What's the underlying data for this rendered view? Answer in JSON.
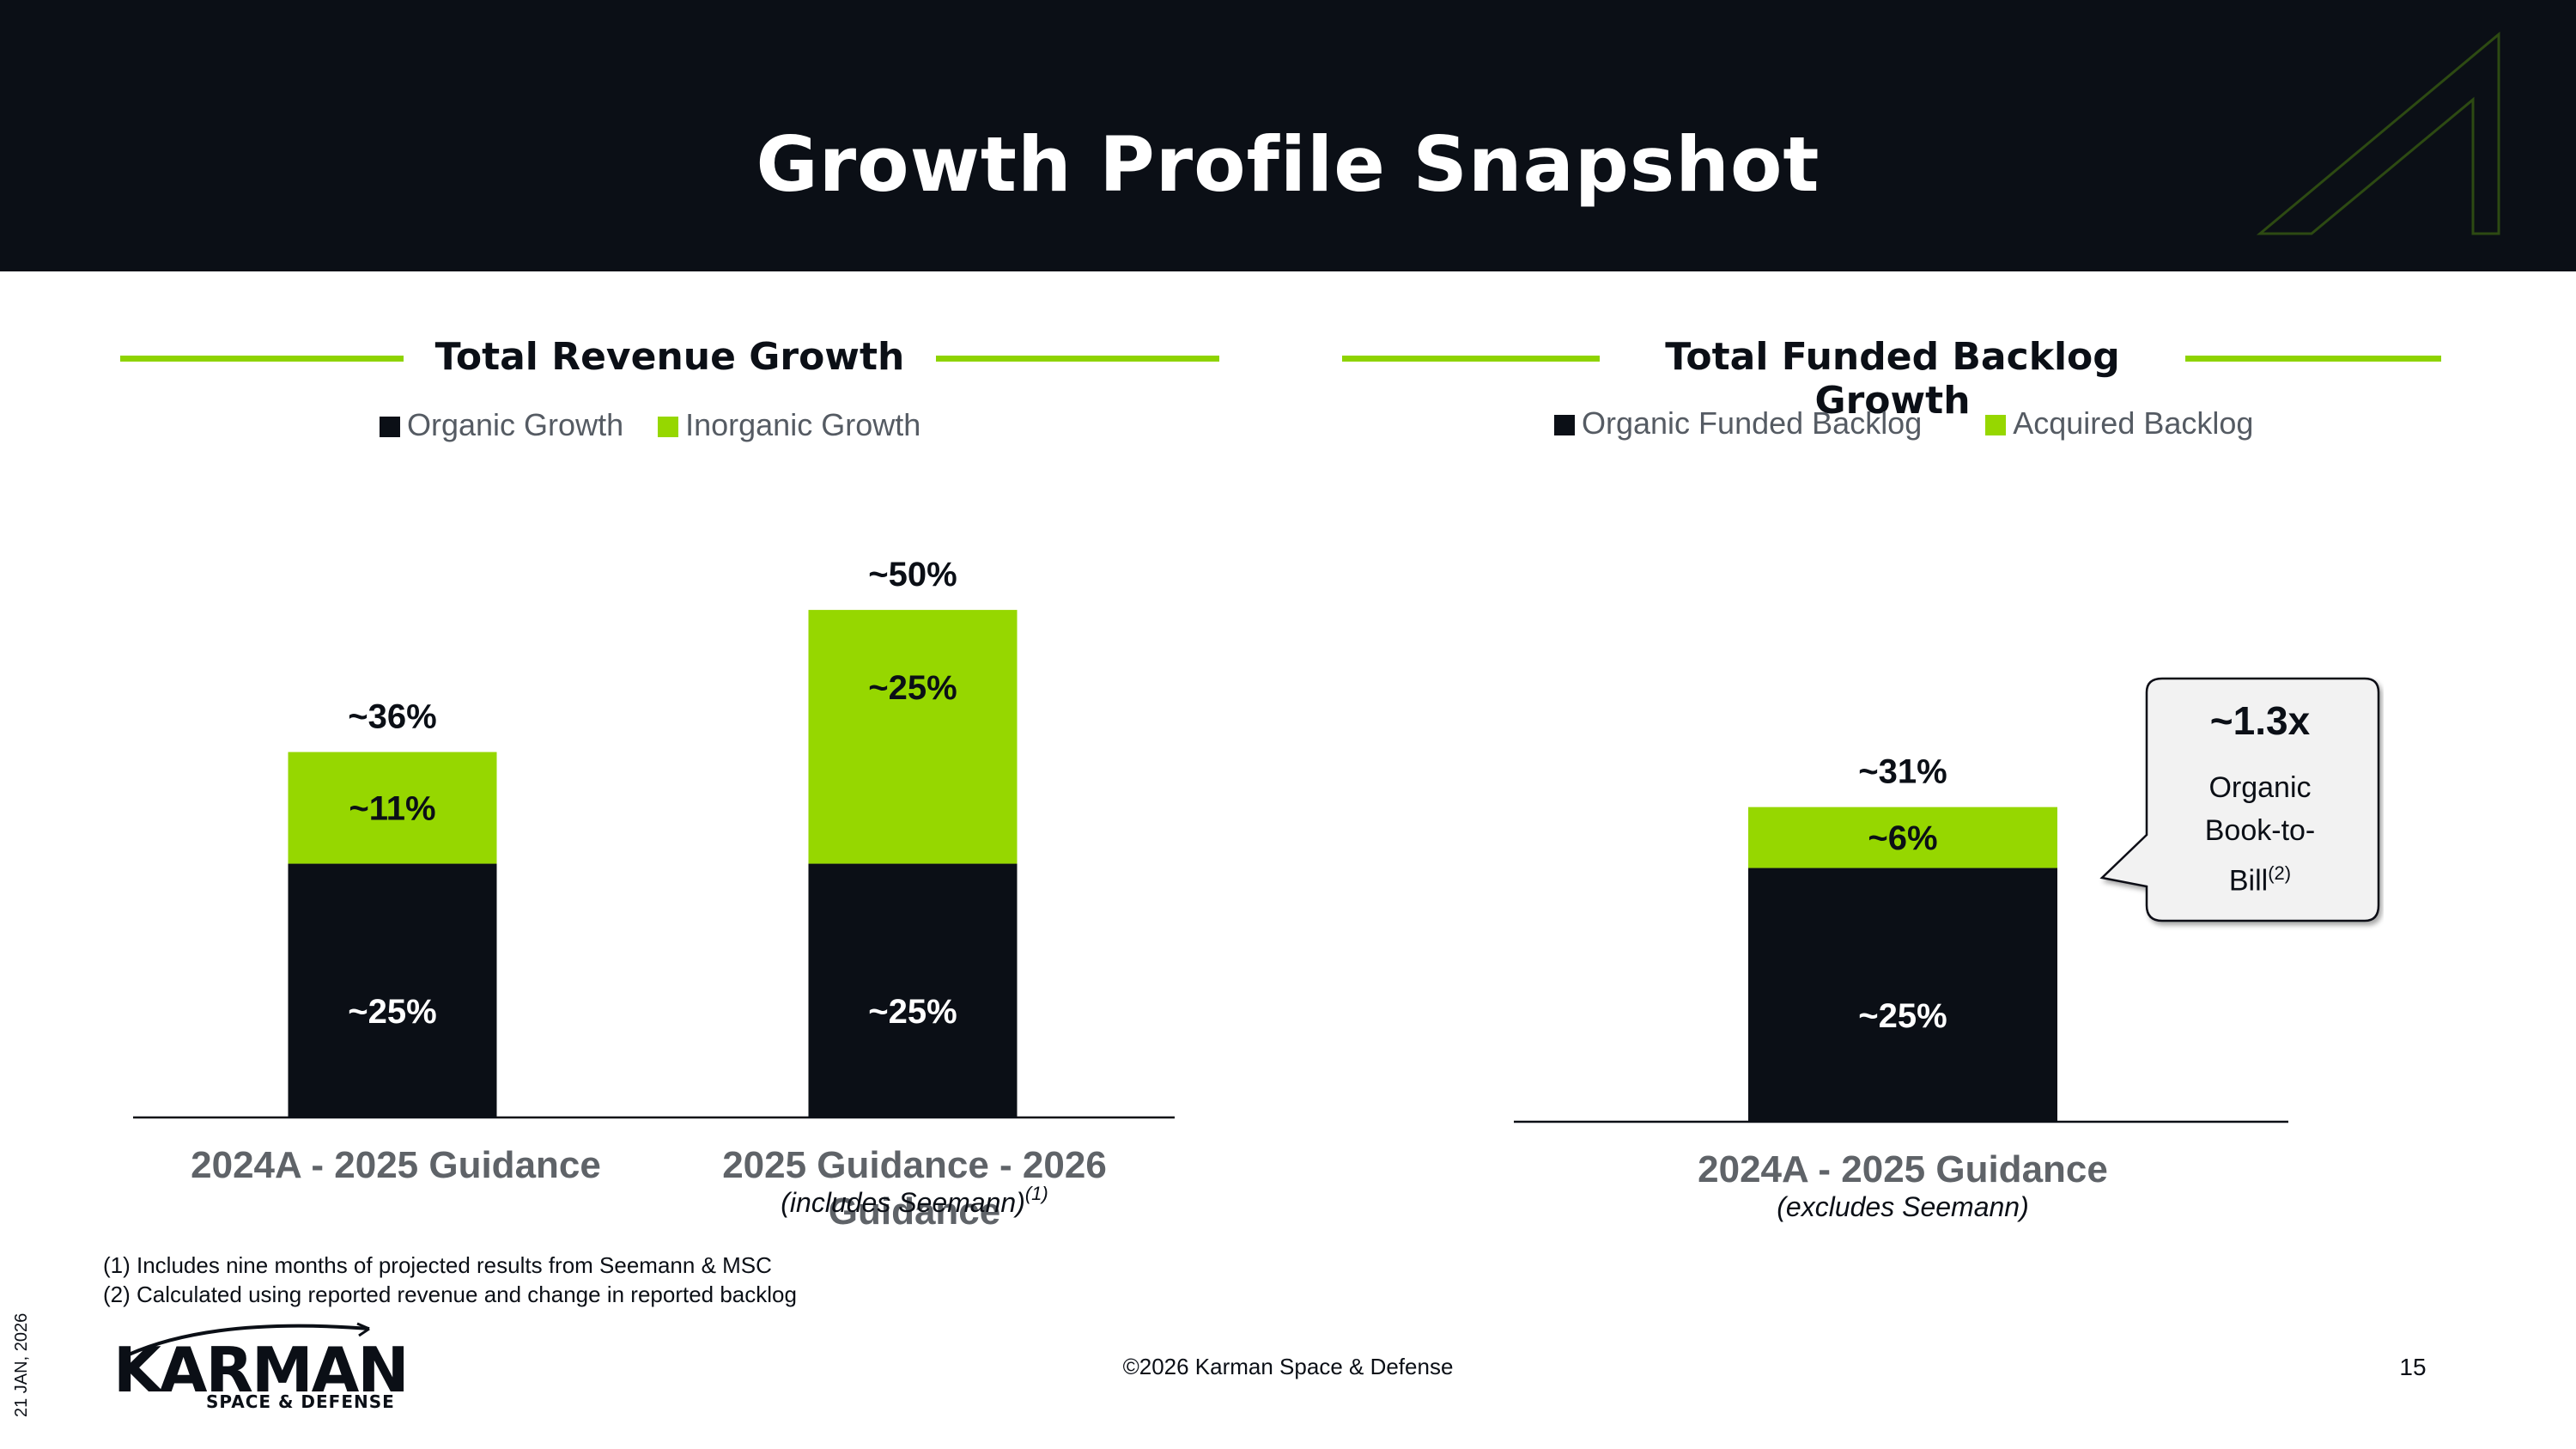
{
  "slide": {
    "title": "Growth Profile Snapshot",
    "page_number": "15",
    "copyright": "©2026 Karman Space & Defense",
    "date": "21 JAN, 2026",
    "logo": {
      "word": "KARMAN",
      "sub": "SPACE & DEFENSE"
    },
    "footnotes": [
      "(1) Includes nine months of projected results from Seemann & MSC",
      "(2) Calculated using reported revenue and change in reported backlog"
    ]
  },
  "colors": {
    "organic": "#0b0f16",
    "inorganic": "#96d700",
    "accent_rule": "#8ed300",
    "header_bg": "#0b0f16"
  },
  "chart_data": [
    {
      "type": "bar",
      "stacked": true,
      "title": "Total Revenue Growth",
      "categories": [
        "2024A - 2025 Guidance",
        "2025 Guidance - 2026 Guidance"
      ],
      "category_notes": [
        "",
        "(includes Seemann)"
      ],
      "category_note_refs": [
        "",
        "(1)"
      ],
      "series": [
        {
          "name": "Organic Growth",
          "values": [
            25,
            25
          ],
          "labels": [
            "~25%",
            "~25%"
          ]
        },
        {
          "name": "Inorganic Growth",
          "values": [
            11,
            25
          ],
          "labels": [
            "~11%",
            "~25%"
          ]
        }
      ],
      "totals": [
        "~36%",
        "~50%"
      ],
      "legend_position": "top",
      "ylim": [
        0,
        55
      ]
    },
    {
      "type": "bar",
      "stacked": true,
      "title": "Total Funded Backlog Growth",
      "categories": [
        "2024A - 2025 Guidance"
      ],
      "category_notes": [
        "(excludes Seemann)"
      ],
      "series": [
        {
          "name": "Organic Funded Backlog",
          "values": [
            25
          ],
          "labels": [
            "~25%"
          ]
        },
        {
          "name": "Acquired Backlog",
          "values": [
            6
          ],
          "labels": [
            "~6%"
          ]
        }
      ],
      "totals": [
        "~31%"
      ],
      "legend_position": "top",
      "ylim": [
        0,
        55
      ],
      "callout": {
        "value": "~1.3x",
        "text": "Organic Book-to-Bill",
        "ref": "(2)"
      }
    }
  ]
}
